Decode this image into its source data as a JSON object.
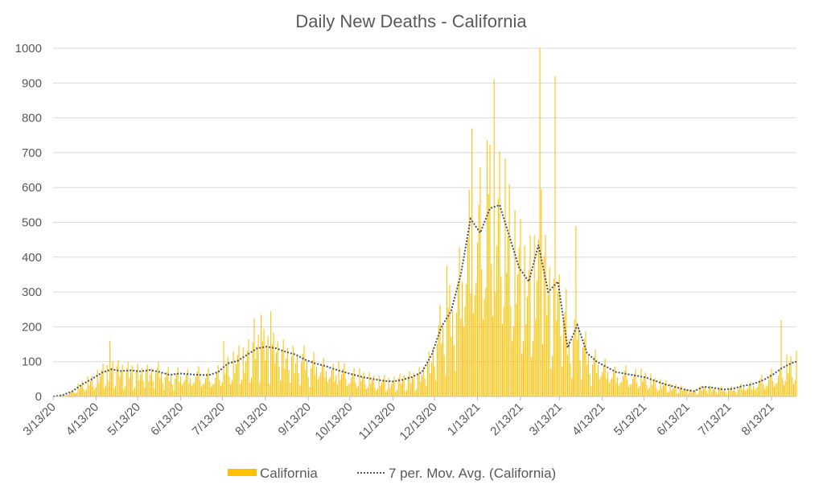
{
  "chart_data": {
    "type": "bar",
    "title": "Daily New Deaths - California",
    "xlabel": "",
    "ylabel": "",
    "ylim": [
      0,
      1000
    ],
    "yticks": [
      0,
      100,
      200,
      300,
      400,
      500,
      600,
      700,
      800,
      900,
      1000
    ],
    "x_start": "3/13/20",
    "x_end": "8/31/21",
    "xtick_labels": [
      "3/13/20",
      "4/13/20",
      "5/13/20",
      "6/13/20",
      "7/13/20",
      "8/13/20",
      "9/13/20",
      "10/13/20",
      "11/13/20",
      "12/13/20",
      "1/13/21",
      "2/13/21",
      "3/13/21",
      "4/13/21",
      "5/13/21",
      "6/13/21",
      "7/13/21",
      "8/13/21"
    ],
    "grid": true,
    "legend_position": "bottom",
    "series": [
      {
        "name": "California",
        "kind": "bar",
        "color": "#FFC000"
      },
      {
        "name": "7 per. Mov. Avg. (California)",
        "kind": "line",
        "style": "dotted",
        "color": "#44546A"
      }
    ],
    "moving_avg_knots": [
      [
        "3/13/20",
        0
      ],
      [
        "3/20/20",
        4
      ],
      [
        "3/27/20",
        15
      ],
      [
        "4/3/20",
        35
      ],
      [
        "4/10/20",
        50
      ],
      [
        "4/17/20",
        68
      ],
      [
        "4/24/20",
        78
      ],
      [
        "5/1/20",
        73
      ],
      [
        "5/8/20",
        75
      ],
      [
        "5/15/20",
        72
      ],
      [
        "5/22/20",
        76
      ],
      [
        "5/29/20",
        70
      ],
      [
        "6/5/20",
        62
      ],
      [
        "6/12/20",
        66
      ],
      [
        "6/19/20",
        64
      ],
      [
        "6/26/20",
        62
      ],
      [
        "7/3/20",
        61
      ],
      [
        "7/10/20",
        70
      ],
      [
        "7/17/20",
        95
      ],
      [
        "7/24/20",
        102
      ],
      [
        "7/31/20",
        120
      ],
      [
        "8/7/20",
        138
      ],
      [
        "8/14/20",
        143
      ],
      [
        "8/21/20",
        138
      ],
      [
        "8/28/20",
        128
      ],
      [
        "9/4/20",
        120
      ],
      [
        "9/11/20",
        105
      ],
      [
        "9/18/20",
        95
      ],
      [
        "9/25/20",
        88
      ],
      [
        "10/2/20",
        78
      ],
      [
        "10/9/20",
        70
      ],
      [
        "10/16/20",
        62
      ],
      [
        "10/23/20",
        55
      ],
      [
        "10/30/20",
        50
      ],
      [
        "11/6/20",
        45
      ],
      [
        "11/13/20",
        43
      ],
      [
        "11/20/20",
        48
      ],
      [
        "11/27/20",
        56
      ],
      [
        "12/4/20",
        70
      ],
      [
        "12/11/20",
        120
      ],
      [
        "12/18/20",
        200
      ],
      [
        "12/25/20",
        245
      ],
      [
        "1/1/21",
        350
      ],
      [
        "1/8/21",
        510
      ],
      [
        "1/15/21",
        470
      ],
      [
        "1/22/21",
        540
      ],
      [
        "1/29/21",
        550
      ],
      [
        "2/5/21",
        460
      ],
      [
        "2/12/21",
        370
      ],
      [
        "2/19/21",
        330
      ],
      [
        "2/26/21",
        435
      ],
      [
        "3/5/21",
        300
      ],
      [
        "3/12/21",
        330
      ],
      [
        "3/19/21",
        140
      ],
      [
        "3/26/21",
        205
      ],
      [
        "4/2/21",
        125
      ],
      [
        "4/9/21",
        100
      ],
      [
        "4/16/21",
        85
      ],
      [
        "4/23/21",
        70
      ],
      [
        "4/30/21",
        65
      ],
      [
        "5/7/21",
        60
      ],
      [
        "5/14/21",
        55
      ],
      [
        "5/21/21",
        45
      ],
      [
        "5/28/21",
        35
      ],
      [
        "6/4/21",
        28
      ],
      [
        "6/11/21",
        20
      ],
      [
        "6/18/21",
        15
      ],
      [
        "6/25/21",
        28
      ],
      [
        "7/2/21",
        25
      ],
      [
        "7/9/21",
        20
      ],
      [
        "7/16/21",
        22
      ],
      [
        "7/23/21",
        30
      ],
      [
        "7/30/21",
        35
      ],
      [
        "8/6/21",
        45
      ],
      [
        "8/13/21",
        60
      ],
      [
        "8/20/21",
        80
      ],
      [
        "8/27/21",
        95
      ],
      [
        "8/31/21",
        100
      ]
    ],
    "bar_spikes": [
      [
        "4/23/20",
        160
      ],
      [
        "7/14/20",
        160
      ],
      [
        "8/5/20",
        225
      ],
      [
        "8/10/20",
        235
      ],
      [
        "8/17/20",
        245
      ],
      [
        "10/5/20",
        100
      ],
      [
        "12/22/20",
        375
      ],
      [
        "1/9/21",
        770
      ],
      [
        "1/20/21",
        735
      ],
      [
        "1/25/21",
        910
      ],
      [
        "2/5/21",
        610
      ],
      [
        "2/27/21",
        1000
      ],
      [
        "2/28/21",
        595
      ],
      [
        "3/10/21",
        920
      ],
      [
        "3/18/21",
        310
      ],
      [
        "3/25/21",
        490
      ],
      [
        "6/13/21",
        20
      ],
      [
        "8/20/21",
        220
      ]
    ]
  }
}
